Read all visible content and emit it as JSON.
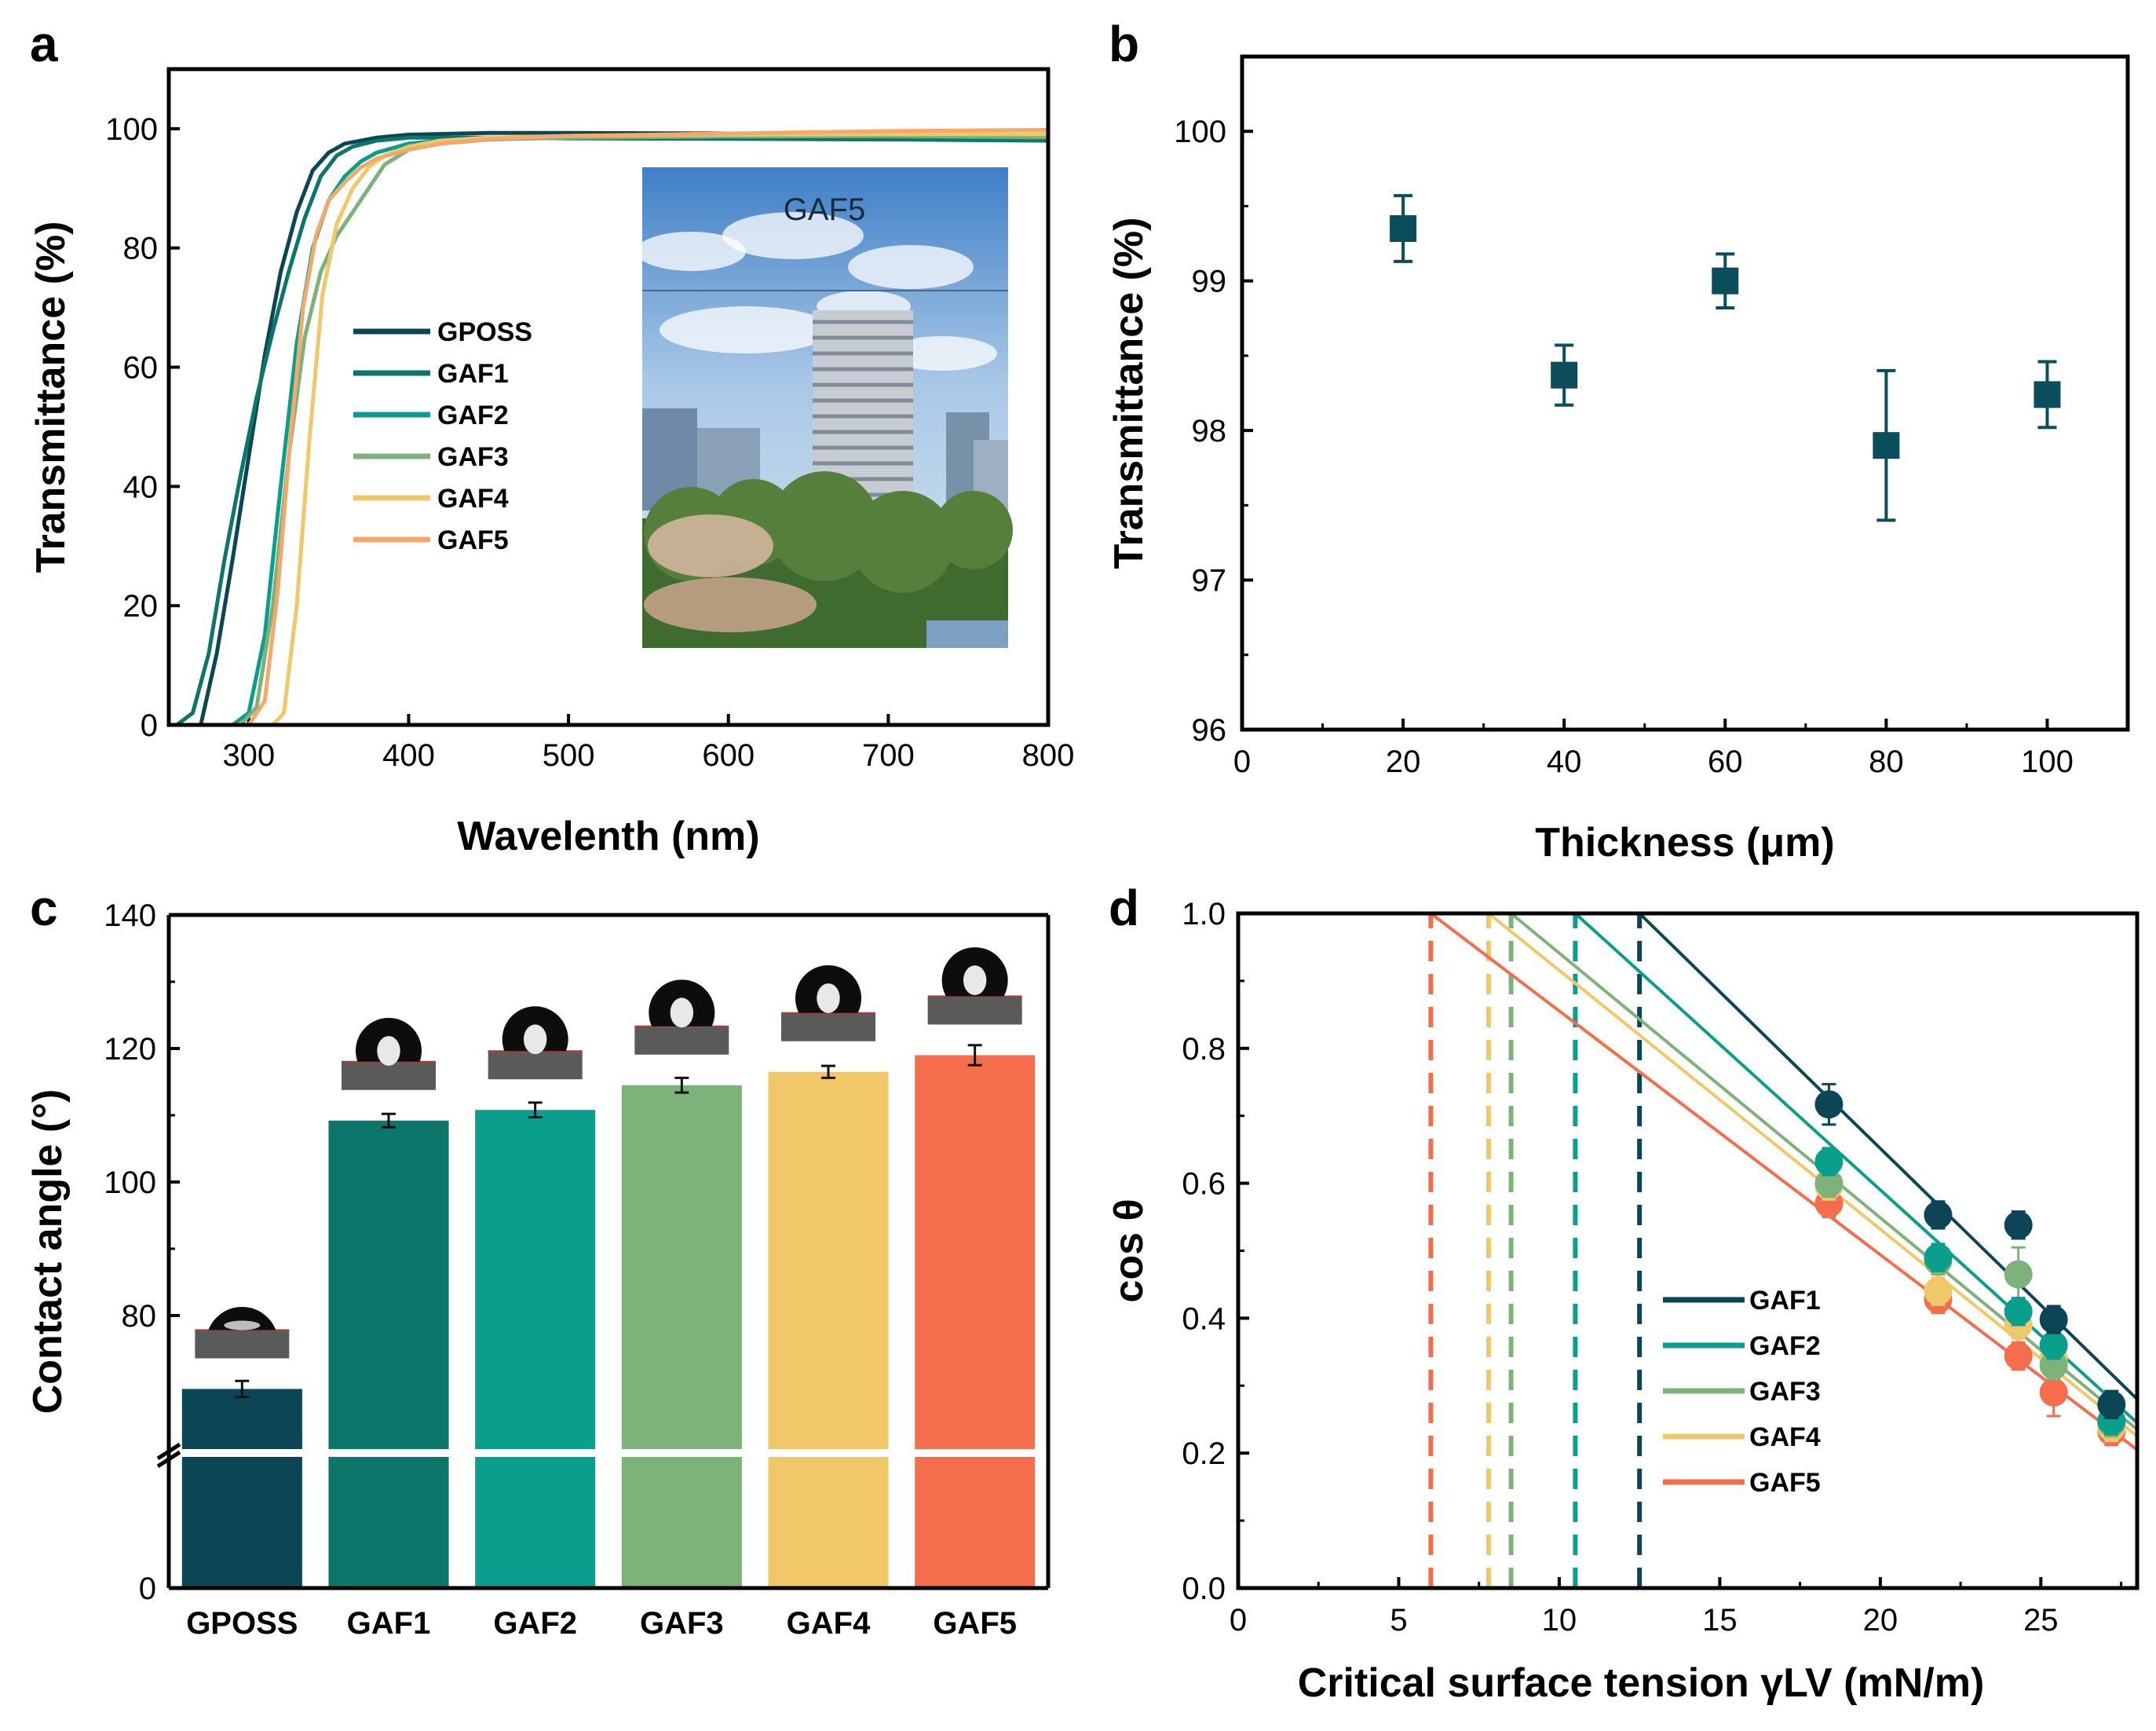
{
  "colors": {
    "GPOSS": "#0b4556",
    "GAF1": "#0c766a",
    "GAF2": "#0a9f8d",
    "GAF3": "#7db27a",
    "GAF4": "#f0c869",
    "GAF5": "#f46e4e",
    "curve_GAF5": "#f4a86a",
    "marker_b": "#0b4d5a"
  },
  "chart_data": [
    {
      "panel": "a",
      "type": "line",
      "title": "",
      "xlabel": "Wavelenth (nm)",
      "ylabel": "Transmittance (%)",
      "xlim": [
        250,
        800
      ],
      "ylim": [
        0,
        110
      ],
      "xticks": [
        300,
        400,
        500,
        600,
        700,
        800
      ],
      "yticks": [
        0,
        20,
        40,
        60,
        80,
        100
      ],
      "legend_position": "middle-left",
      "inset_label": "GAF5",
      "inset_description_icon": "photo-icon",
      "series": [
        {
          "name": "GPOSS",
          "x": [
            255,
            270,
            280,
            290,
            300,
            310,
            320,
            330,
            340,
            350,
            360,
            380,
            400,
            450,
            500,
            600,
            700,
            800
          ],
          "y": [
            0,
            0,
            12,
            28,
            45,
            62,
            76,
            86,
            93,
            96,
            97.5,
            98.5,
            99,
            99.3,
            99.3,
            99.2,
            99,
            99
          ]
        },
        {
          "name": "GAF1",
          "x": [
            255,
            265,
            275,
            285,
            295,
            305,
            315,
            325,
            335,
            345,
            355,
            365,
            380,
            400,
            450,
            500,
            600,
            700,
            800
          ],
          "y": [
            0,
            2,
            12,
            28,
            42,
            55,
            66,
            76,
            85,
            92,
            95.5,
            97,
            98,
            98.5,
            98.5,
            98.4,
            98.3,
            98.2,
            98
          ]
        },
        {
          "name": "GAF2",
          "x": [
            290,
            300,
            310,
            320,
            330,
            340,
            350,
            360,
            370,
            380,
            400,
            420,
            450,
            500,
            600,
            700,
            800
          ],
          "y": [
            0,
            2,
            15,
            40,
            64,
            80,
            88,
            92,
            94.5,
            96,
            97.5,
            98,
            98.5,
            98.7,
            98.8,
            98.7,
            98.5
          ]
        },
        {
          "name": "GAF3",
          "x": [
            295,
            305,
            315,
            325,
            335,
            345,
            355,
            365,
            375,
            385,
            400,
            420,
            450,
            500,
            600,
            700,
            800
          ],
          "y": [
            0,
            3,
            20,
            45,
            65,
            76,
            82,
            86,
            90,
            94,
            96.5,
            97.5,
            98.2,
            98.5,
            98.7,
            98.8,
            98.6
          ]
        },
        {
          "name": "GAF4",
          "x": [
            315,
            322,
            330,
            338,
            346,
            355,
            365,
            375,
            385,
            400,
            420,
            450,
            500,
            600,
            700,
            800
          ],
          "y": [
            0,
            2,
            20,
            48,
            72,
            84,
            90,
            93.5,
            95.5,
            97,
            98,
            98.5,
            98.8,
            99,
            99.1,
            99.1
          ]
        },
        {
          "name": "GAF5",
          "x": [
            300,
            310,
            318,
            326,
            334,
            342,
            350,
            360,
            370,
            380,
            400,
            420,
            450,
            500,
            600,
            700,
            800
          ],
          "y": [
            0,
            4,
            22,
            48,
            70,
            82,
            88,
            91,
            93.5,
            95,
            96.5,
            97.5,
            98.3,
            98.8,
            99.2,
            99.6,
            99.8
          ]
        }
      ]
    },
    {
      "panel": "b",
      "type": "scatter",
      "title": "",
      "xlabel": "Thickness (μm)",
      "ylabel": "Transmittance (%)",
      "xlim": [
        0,
        110
      ],
      "ylim": [
        96,
        100.5
      ],
      "xticks": [
        0,
        20,
        40,
        60,
        80,
        100
      ],
      "yticks": [
        96,
        97,
        98,
        99,
        100
      ],
      "x": [
        20,
        40,
        60,
        80,
        100
      ],
      "y": [
        99.35,
        98.37,
        99.0,
        97.9,
        98.24
      ],
      "error": [
        0.22,
        0.2,
        0.18,
        0.5,
        0.22
      ]
    },
    {
      "panel": "c",
      "type": "bar",
      "title": "",
      "xlabel": "",
      "ylabel": "Contact angle (°)",
      "y_axis_break": true,
      "lower_segment": [
        0,
        60
      ],
      "upper_segment": [
        60,
        140
      ],
      "yticks": [
        0,
        80,
        100,
        120,
        140
      ],
      "categories": [
        "GPOSS",
        "GAF1",
        "GAF2",
        "GAF3",
        "GAF4",
        "GAF5"
      ],
      "values": [
        69,
        109.2,
        110.8,
        114.5,
        116.5,
        119
      ],
      "error": [
        1.2,
        1.0,
        1.1,
        1.1,
        0.9,
        1.5
      ]
    },
    {
      "panel": "d",
      "type": "scatter",
      "title": "",
      "xlabel": "Critical surface tension γLV (mN/m)",
      "ylabel": "cos θ",
      "xlim": [
        0,
        28
      ],
      "ylim": [
        0,
        1.0
      ],
      "xticks": [
        0,
        5,
        10,
        15,
        20,
        25
      ],
      "yticks": [
        0.0,
        0.2,
        0.4,
        0.6,
        0.8,
        1.0
      ],
      "legend_position": "bottom-right",
      "x": [
        18.4,
        21.8,
        24.3,
        25.4,
        27.2
      ],
      "series": [
        {
          "name": "GAF1",
          "y": [
            0.717,
            0.553,
            0.538,
            0.398,
            0.272
          ],
          "error": [
            0.03,
            0.02,
            0.02,
            0.02,
            0.02
          ],
          "fit": [
            [
              12.5,
              1.0
            ],
            [
              28,
              0.28
            ]
          ],
          "critical": 12.5
        },
        {
          "name": "GAF2",
          "y": [
            0.632,
            0.49,
            0.41,
            0.36,
            0.248
          ],
          "error": [
            0.02,
            0.02,
            0.02,
            0.02,
            0.02
          ],
          "fit": [
            [
              10.5,
              1.0
            ],
            [
              28,
              0.245
            ]
          ],
          "critical": 10.5
        },
        {
          "name": "GAF3",
          "y": [
            0.6,
            0.485,
            0.465,
            0.33,
            0.245
          ],
          "error": [
            0.02,
            0.02,
            0.04,
            0.02,
            0.02
          ],
          "fit": [
            [
              8.5,
              1.0
            ],
            [
              28,
              0.235
            ]
          ],
          "critical": 8.5
        },
        {
          "name": "GAF4",
          "y": [
            0.596,
            0.44,
            0.39,
            0.34,
            0.238
          ],
          "error": [
            0.02,
            0.02,
            0.02,
            0.02,
            0.02
          ],
          "fit": [
            [
              7.8,
              1.0
            ],
            [
              28,
              0.225
            ]
          ],
          "critical": 7.8
        },
        {
          "name": "GAF5",
          "y": [
            0.57,
            0.428,
            0.344,
            0.29,
            0.232
          ],
          "error": [
            0.02,
            0.02,
            0.02,
            0.035,
            0.02
          ],
          "fit": [
            [
              6.0,
              1.0
            ],
            [
              28,
              0.205
            ]
          ],
          "critical": 6.0
        }
      ]
    }
  ],
  "labels": {
    "panel_a": "a",
    "panel_b": "b",
    "panel_c": "c",
    "panel_d": "d"
  }
}
